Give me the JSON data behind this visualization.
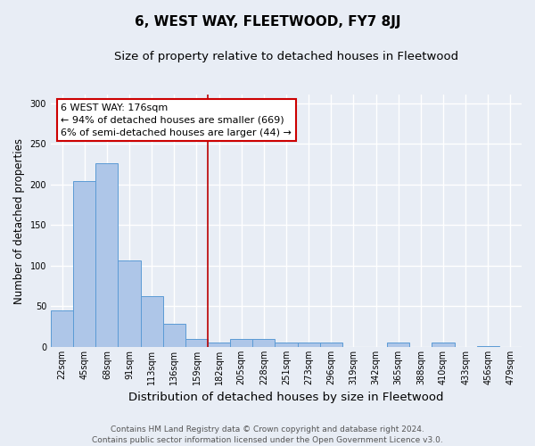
{
  "title": "6, WEST WAY, FLEETWOOD, FY7 8JJ",
  "subtitle": "Size of property relative to detached houses in Fleetwood",
  "xlabel": "Distribution of detached houses by size in Fleetwood",
  "ylabel": "Number of detached properties",
  "bar_values": [
    45,
    204,
    226,
    106,
    62,
    28,
    10,
    5,
    10,
    10,
    5,
    5,
    5,
    0,
    0,
    5,
    0,
    5,
    0,
    1,
    0
  ],
  "bar_labels": [
    "22sqm",
    "45sqm",
    "68sqm",
    "91sqm",
    "113sqm",
    "136sqm",
    "159sqm",
    "182sqm",
    "205sqm",
    "228sqm",
    "251sqm",
    "273sqm",
    "296sqm",
    "319sqm",
    "342sqm",
    "365sqm",
    "388sqm",
    "410sqm",
    "433sqm",
    "456sqm",
    "479sqm"
  ],
  "bar_color": "#aec6e8",
  "bar_edge_color": "#5b9bd5",
  "property_line_bin_index": 7,
  "property_line_color": "#bb0000",
  "annotation_text": "6 WEST WAY: 176sqm\n← 94% of detached houses are smaller (669)\n6% of semi-detached houses are larger (44) →",
  "annotation_box_color": "#ffffff",
  "annotation_box_edge_color": "#cc0000",
  "ylim": [
    0,
    310
  ],
  "yticks": [
    0,
    50,
    100,
    150,
    200,
    250,
    300
  ],
  "background_color": "#e8edf5",
  "grid_color": "#ffffff",
  "footer_line1": "Contains HM Land Registry data © Crown copyright and database right 2024.",
  "footer_line2": "Contains public sector information licensed under the Open Government Licence v3.0.",
  "title_fontsize": 11,
  "subtitle_fontsize": 9.5,
  "xlabel_fontsize": 9.5,
  "ylabel_fontsize": 8.5,
  "annotation_fontsize": 8,
  "tick_fontsize": 7,
  "footer_fontsize": 6.5
}
